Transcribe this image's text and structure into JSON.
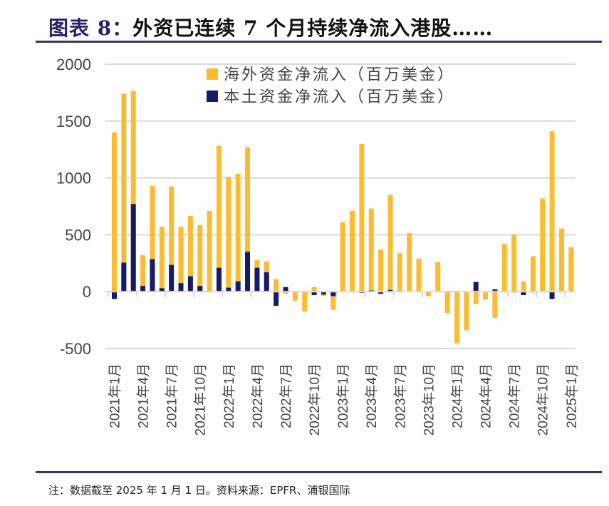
{
  "header": {
    "title_prefix": "图表 8：",
    "title_text": "外资已连续 7 个月持续净流入港股……"
  },
  "footer": {
    "note": "注：数据截至 2025 年 1 月 1 日。资料来源：EPFR、浦银国际"
  },
  "colors": {
    "overseas": "#FDBB30",
    "domestic": "#141B6B",
    "grid": "#D9D9D9",
    "rule": "#3D3563"
  },
  "chart_data": {
    "type": "bar",
    "title": "外资已连续 7 个月持续净流入港股……",
    "xlabel": "",
    "ylabel": "",
    "ylim": [
      -500,
      2000
    ],
    "yticks": [
      2000,
      1500,
      1000,
      500,
      0,
      -500
    ],
    "grid": true,
    "legend_position": "top-center",
    "bar_mode": "overlap",
    "categories": [
      "2021年1月",
      "2021年2月",
      "2021年3月",
      "2021年4月",
      "2021年5月",
      "2021年6月",
      "2021年7月",
      "2021年8月",
      "2021年9月",
      "2021年10月",
      "2021年11月",
      "2021年12月",
      "2022年1月",
      "2022年2月",
      "2022年3月",
      "2022年4月",
      "2022年5月",
      "2022年6月",
      "2022年7月",
      "2022年8月",
      "2022年9月",
      "2022年10月",
      "2022年11月",
      "2022年12月",
      "2023年1月",
      "2023年2月",
      "2023年3月",
      "2023年4月",
      "2023年5月",
      "2023年6月",
      "2023年7月",
      "2023年8月",
      "2023年9月",
      "2023年10月",
      "2023年11月",
      "2023年12月",
      "2024年1月",
      "2024年2月",
      "2024年3月",
      "2024年4月",
      "2024年5月",
      "2024年6月",
      "2024年7月",
      "2024年8月",
      "2024年9月",
      "2024年10月",
      "2024年11月",
      "2024年12月",
      "2025年1月"
    ],
    "xtick_labels": [
      "2021年1月",
      "2021年4月",
      "2021年7月",
      "2021年10月",
      "2022年1月",
      "2022年4月",
      "2022年7月",
      "2022年10月",
      "2023年1月",
      "2023年4月",
      "2023年7月",
      "2023年10月",
      "2024年1月",
      "2024年4月",
      "2024年7月",
      "2024年10月",
      "2025年1月"
    ],
    "series": [
      {
        "name": "海外资金净流入（百万美金）",
        "color": "#FDBB30",
        "values": [
          1400,
          1740,
          1765,
          320,
          930,
          570,
          925,
          570,
          665,
          585,
          710,
          1280,
          1010,
          1035,
          1270,
          280,
          265,
          110,
          -20,
          -80,
          -175,
          40,
          -40,
          -160,
          610,
          710,
          1300,
          730,
          370,
          850,
          340,
          515,
          290,
          -40,
          260,
          -190,
          -455,
          -340,
          -110,
          -70,
          -230,
          420,
          500,
          90,
          310,
          820,
          1410,
          555,
          390
        ]
      },
      {
        "name": "本土资金净流入（百万美金）",
        "color": "#141B6B",
        "values": [
          -65,
          255,
          770,
          50,
          285,
          30,
          235,
          75,
          135,
          50,
          5,
          210,
          35,
          90,
          350,
          210,
          170,
          -125,
          40,
          0,
          0,
          -30,
          -25,
          -40,
          0,
          0,
          -10,
          10,
          -20,
          15,
          0,
          0,
          0,
          0,
          0,
          5,
          5,
          0,
          85,
          0,
          20,
          0,
          -5,
          -30,
          -5,
          0,
          -65,
          0,
          0
        ]
      }
    ]
  }
}
